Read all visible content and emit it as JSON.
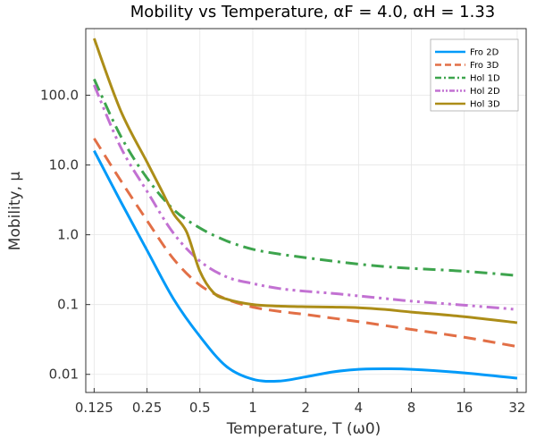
{
  "chart_data": {
    "type": "line",
    "title": "Mobility vs Temperature, αF = 4.0, αH = 1.33",
    "xlabel": "Temperature, T (ω0)",
    "ylabel": "Mobility, μ",
    "xscale": "log2",
    "yscale": "log10",
    "xlim": [
      0.112,
      36
    ],
    "ylim": [
      0.0055,
      900
    ],
    "xticks": [
      0.125,
      0.25,
      0.5,
      1,
      2,
      4,
      8,
      16,
      32
    ],
    "xtick_labels": [
      "0.125",
      "0.25",
      "0.5",
      "1",
      "2",
      "4",
      "8",
      "16",
      "32"
    ],
    "yticks": [
      0.01,
      0.1,
      1,
      10,
      100
    ],
    "ytick_labels": [
      "0.01",
      "0.1",
      "1.0",
      "10.0",
      "100.0"
    ],
    "grid": true,
    "legend_position": "top-right",
    "series": [
      {
        "name": "Fro 2D",
        "color": "#009af9",
        "dash": "solid",
        "x": [
          0.125,
          0.177,
          0.25,
          0.354,
          0.5,
          0.707,
          1,
          1.41,
          2,
          2.83,
          4,
          5.66,
          8,
          16,
          32
        ],
        "y": [
          16,
          3.0,
          0.6,
          0.12,
          0.035,
          0.013,
          0.0085,
          0.008,
          0.0092,
          0.0108,
          0.0118,
          0.012,
          0.0118,
          0.0105,
          0.0088
        ]
      },
      {
        "name": "Fro 3D",
        "color": "#e26f46",
        "dash": "dash",
        "x": [
          0.125,
          0.177,
          0.25,
          0.354,
          0.5,
          0.707,
          1,
          1.41,
          2,
          2.83,
          4,
          5.66,
          8,
          16,
          32
        ],
        "y": [
          24,
          6.0,
          1.6,
          0.45,
          0.19,
          0.12,
          0.092,
          0.08,
          0.072,
          0.064,
          0.057,
          0.05,
          0.044,
          0.034,
          0.025
        ]
      },
      {
        "name": "Hol 1D",
        "color": "#3da44d",
        "dash": "dashdot",
        "x": [
          0.125,
          0.177,
          0.25,
          0.354,
          0.5,
          0.707,
          1,
          1.41,
          2,
          2.83,
          4,
          5.66,
          8,
          16,
          32
        ],
        "y": [
          170,
          26,
          6.5,
          2.3,
          1.25,
          0.82,
          0.62,
          0.53,
          0.47,
          0.42,
          0.38,
          0.35,
          0.33,
          0.3,
          0.26
        ]
      },
      {
        "name": "Hol 2D",
        "color": "#c271d2",
        "dash": "dashdotdot",
        "x": [
          0.125,
          0.177,
          0.25,
          0.354,
          0.5,
          0.707,
          1,
          1.41,
          2,
          2.83,
          4,
          5.66,
          8,
          16,
          32
        ],
        "y": [
          140,
          18,
          4.2,
          1.05,
          0.42,
          0.25,
          0.2,
          0.17,
          0.155,
          0.145,
          0.133,
          0.122,
          0.112,
          0.098,
          0.085
        ]
      },
      {
        "name": "Hol 3D",
        "color": "#ac8d18",
        "dash": "solid",
        "x": [
          0.125,
          0.177,
          0.25,
          0.3,
          0.354,
          0.42,
          0.5,
          0.595,
          0.707,
          1,
          1.41,
          2,
          2.83,
          4,
          5.66,
          8,
          16,
          32
        ],
        "y": [
          650,
          60,
          11,
          4.5,
          2.0,
          1.1,
          0.3,
          0.15,
          0.12,
          0.1,
          0.095,
          0.093,
          0.092,
          0.09,
          0.085,
          0.078,
          0.067,
          0.055
        ]
      }
    ]
  }
}
